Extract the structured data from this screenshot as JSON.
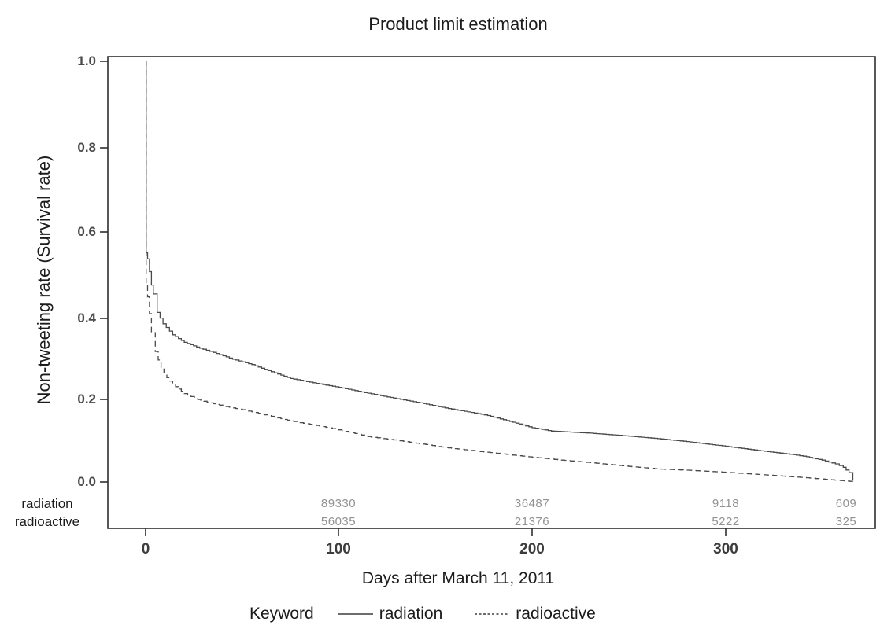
{
  "title": "Product limit estimation",
  "y_axis": {
    "label": "Non-tweeting rate (Survival rate)",
    "ticks": [
      "1.0",
      "0.8",
      "0.6",
      "0.4",
      "0.2",
      "0.0"
    ]
  },
  "x_axis": {
    "label": "Days after March 11, 2011",
    "ticks": [
      "0",
      "100",
      "200",
      "300"
    ]
  },
  "at_risk": {
    "rows": [
      {
        "label": "radiation",
        "counts": [
          "89330",
          "36487",
          "9118",
          "609"
        ]
      },
      {
        "label": "radioactive",
        "counts": [
          "56035",
          "21376",
          "5222",
          "325"
        ]
      }
    ]
  },
  "legend": {
    "title": "Keyword",
    "items": [
      {
        "label": "radiation",
        "style": "solid"
      },
      {
        "label": "radioactive",
        "style": "dashed"
      }
    ]
  },
  "colors": {
    "curve": "#4a4a4a",
    "frame": "#2f2f2f",
    "background": "#ffffff"
  },
  "chart_data": {
    "type": "line",
    "subtype": "kaplan-meier-step",
    "title": "Product limit estimation",
    "xlabel": "Days after March 11, 2011",
    "ylabel": "Non-tweeting rate (Survival rate)",
    "xlim": [
      0,
      378
    ],
    "ylim": [
      0,
      1.0
    ],
    "x_ticks": [
      0,
      100,
      200,
      300
    ],
    "y_ticks": [
      0.0,
      0.2,
      0.4,
      0.6,
      0.8,
      1.0
    ],
    "grid": false,
    "legend_position": "bottom",
    "at_risk": {
      "days": [
        100,
        200,
        300,
        362
      ],
      "radiation": [
        89330,
        36487,
        9118,
        609
      ],
      "radioactive": [
        56035,
        21376,
        5222,
        325
      ]
    },
    "series": [
      {
        "name": "radiation",
        "line": "solid",
        "color": "#4a4a4a",
        "points": [
          [
            0,
            1.0
          ],
          [
            0.3,
            0.545
          ],
          [
            1,
            0.53
          ],
          [
            2,
            0.5
          ],
          [
            3,
            0.468
          ],
          [
            4,
            0.447
          ],
          [
            6,
            0.403
          ],
          [
            9,
            0.376
          ],
          [
            14,
            0.35
          ],
          [
            20,
            0.332
          ],
          [
            28,
            0.318
          ],
          [
            35,
            0.308
          ],
          [
            45,
            0.292
          ],
          [
            55,
            0.279
          ],
          [
            65,
            0.262
          ],
          [
            75,
            0.246
          ],
          [
            90,
            0.233
          ],
          [
            100,
            0.225
          ],
          [
            115,
            0.211
          ],
          [
            130,
            0.198
          ],
          [
            142,
            0.188
          ],
          [
            155,
            0.176
          ],
          [
            165,
            0.168
          ],
          [
            177,
            0.158
          ],
          [
            190,
            0.142
          ],
          [
            200,
            0.129
          ],
          [
            210,
            0.121
          ],
          [
            230,
            0.116
          ],
          [
            250,
            0.109
          ],
          [
            265,
            0.103
          ],
          [
            280,
            0.096
          ],
          [
            300,
            0.085
          ],
          [
            320,
            0.073
          ],
          [
            335,
            0.065
          ],
          [
            342,
            0.06
          ],
          [
            350,
            0.052
          ],
          [
            357,
            0.043
          ],
          [
            361,
            0.035
          ],
          [
            364,
            0.022
          ],
          [
            366,
            0.004
          ]
        ]
      },
      {
        "name": "radioactive",
        "line": "dashed",
        "color": "#4a4a4a",
        "points": [
          [
            0,
            1.0
          ],
          [
            0.3,
            0.47
          ],
          [
            1,
            0.44
          ],
          [
            2,
            0.4
          ],
          [
            3,
            0.355
          ],
          [
            5,
            0.31
          ],
          [
            8,
            0.27
          ],
          [
            11,
            0.248
          ],
          [
            14,
            0.232
          ],
          [
            20,
            0.21
          ],
          [
            27,
            0.196
          ],
          [
            35,
            0.186
          ],
          [
            45,
            0.176
          ],
          [
            55,
            0.167
          ],
          [
            65,
            0.156
          ],
          [
            75,
            0.145
          ],
          [
            90,
            0.133
          ],
          [
            100,
            0.124
          ],
          [
            115,
            0.108
          ],
          [
            130,
            0.099
          ],
          [
            145,
            0.089
          ],
          [
            155,
            0.082
          ],
          [
            170,
            0.074
          ],
          [
            180,
            0.069
          ],
          [
            200,
            0.059
          ],
          [
            215,
            0.052
          ],
          [
            230,
            0.046
          ],
          [
            250,
            0.037
          ],
          [
            265,
            0.031
          ],
          [
            280,
            0.028
          ],
          [
            300,
            0.023
          ],
          [
            320,
            0.017
          ],
          [
            342,
            0.01
          ],
          [
            355,
            0.005
          ],
          [
            366,
            0.001
          ]
        ]
      }
    ]
  }
}
